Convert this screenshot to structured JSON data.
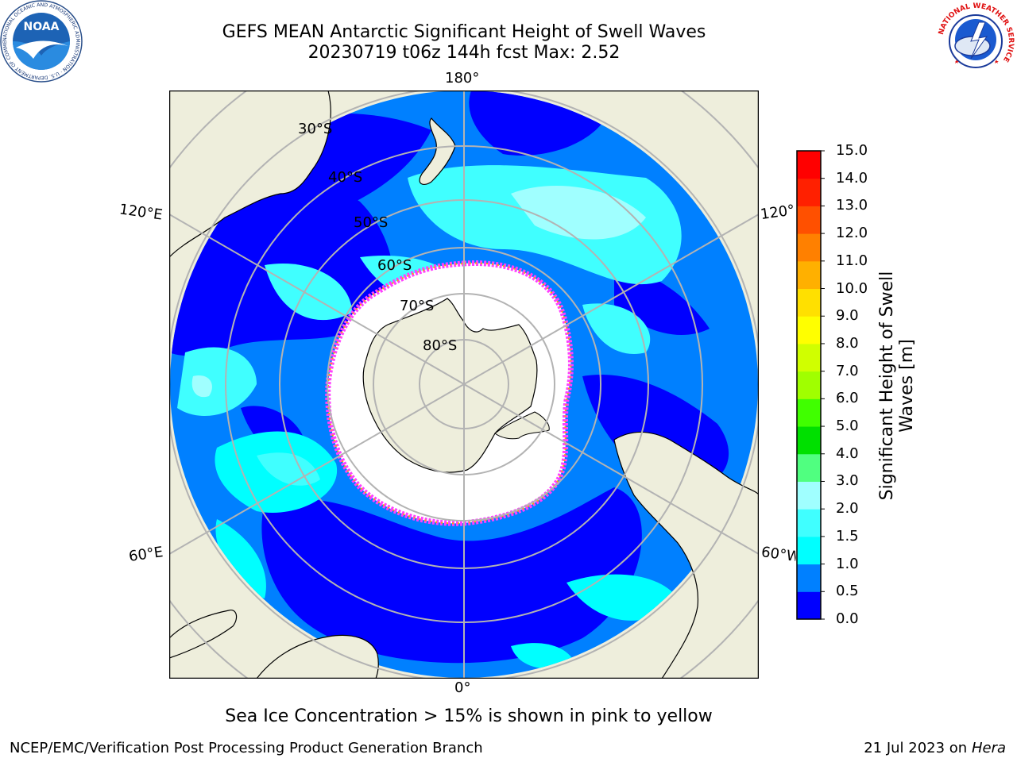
{
  "header": {
    "title_line1": "GEFS MEAN Antarctic Significant Height of Swell Waves",
    "title_line2": "20230719 t06z 144h fcst   Max: 2.52"
  },
  "logos": {
    "noaa_text": "NOAA",
    "noaa_ring_text": "NATIONAL OCEANIC AND ATMOSPHERIC ADMINISTRATION · U.S. DEPARTMENT OF COMMERCE",
    "nws_ring_text": "NATIONAL WEATHER SERVICE"
  },
  "map": {
    "projection": "south-polar-stereographic",
    "longitude_labels": {
      "top": "180°",
      "bottom": "0°",
      "left_upper": "120°E",
      "left_lower": "60°E",
      "right_upper": "120°",
      "right_lower": "60°W"
    },
    "latitude_labels": [
      "30°S",
      "40°S",
      "50°S",
      "60°S",
      "70°S",
      "80°S"
    ],
    "colors": {
      "land": "#eeeedc",
      "grid": "#b3b3b3",
      "ice_fill": "#ffffff",
      "ice_edge": "#ff40ff",
      "ice_edge_inner": "#ffa500"
    }
  },
  "colorbar": {
    "label": "Significant Height of Swell Waves [m]",
    "label_line1": "Significant Height of Swell",
    "label_line2": "Waves [m]",
    "ticks": [
      "0.0",
      "0.5",
      "1.0",
      "1.5",
      "2.0",
      "3.0",
      "4.0",
      "5.0",
      "6.0",
      "7.0",
      "8.0",
      "9.0",
      "10.0",
      "11.0",
      "12.0",
      "13.0",
      "14.0",
      "15.0"
    ],
    "colors": [
      "#0000ff",
      "#0080ff",
      "#00ffff",
      "#40ffff",
      "#a0ffff",
      "#50ff80",
      "#00e000",
      "#40ff00",
      "#a0ff00",
      "#d0ff00",
      "#ffff00",
      "#ffe000",
      "#ffb000",
      "#ff8000",
      "#ff5000",
      "#ff2000",
      "#ff0000"
    ]
  },
  "notes": {
    "ice": "Sea Ice Concentration > 15% is shown in pink to yellow"
  },
  "footer": {
    "left": "NCEP/EMC/Verification Post Processing Product Generation Branch",
    "date": "21 Jul 2023 on",
    "machine": "Hera"
  }
}
